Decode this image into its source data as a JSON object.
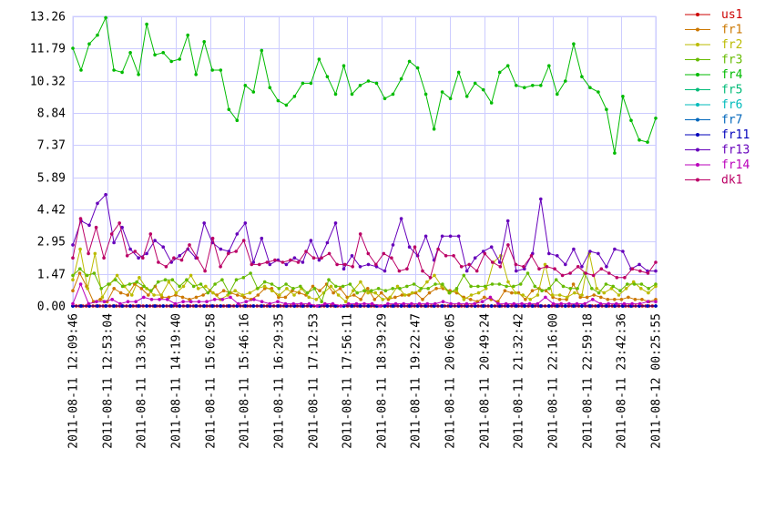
{
  "chart_data": {
    "type": "line",
    "title": "",
    "xlabel": "",
    "ylabel": "",
    "ylim": [
      0,
      13.26
    ],
    "yticks": [
      "0.00",
      "1.47",
      "2.95",
      "4.42",
      "5.89",
      "7.37",
      "8.84",
      "10.32",
      "11.79",
      "13.26"
    ],
    "grid": true,
    "legend_position": "right",
    "x_range": [
      "2011-08-11 12:09:46",
      "2011-08-12 00:25:55"
    ],
    "xticks": [
      "2011-08-11 12:09:46",
      "2011-08-11 12:53:04",
      "2011-08-11 13:36:22",
      "2011-08-11 14:19:40",
      "2011-08-11 15:02:58",
      "2011-08-11 15:46:16",
      "2011-08-11 16:29:35",
      "2011-08-11 17:12:53",
      "2011-08-11 17:56:11",
      "2011-08-11 18:39:29",
      "2011-08-11 19:22:47",
      "2011-08-11 20:06:05",
      "2011-08-11 20:49:24",
      "2011-08-11 21:32:42",
      "2011-08-11 22:16:00",
      "2011-08-11 22:59:18",
      "2011-08-11 23:42:36",
      "2011-08-12 00:25:55"
    ],
    "series": [
      {
        "name": "us1",
        "color": "#cc0000",
        "values": [
          0,
          0,
          0,
          0,
          0,
          0,
          0,
          0,
          0,
          0,
          0,
          0,
          0,
          0,
          0,
          0,
          0,
          0,
          0,
          0,
          0,
          0,
          0,
          0,
          0,
          0,
          0,
          0,
          0,
          0,
          0,
          0,
          0,
          0,
          0,
          0,
          0,
          0,
          0,
          0,
          0,
          0,
          0,
          0,
          0,
          0,
          0,
          0,
          0,
          0,
          0,
          0,
          0,
          0,
          0,
          0,
          0,
          0,
          0,
          0,
          0,
          0,
          0,
          0,
          0,
          0,
          0,
          0,
          0,
          0,
          0,
          0,
          0,
          0,
          0,
          0,
          0,
          0,
          0,
          0,
          0,
          0,
          0,
          0,
          0,
          0,
          0,
          0,
          0,
          0,
          0,
          0,
          0,
          0,
          0,
          0,
          0,
          0,
          0,
          0,
          0,
          0,
          0,
          0,
          0,
          0,
          0,
          0,
          0,
          0,
          0,
          0,
          0,
          0,
          0,
          0,
          0,
          0,
          0,
          0,
          0,
          0,
          0,
          0,
          0,
          0,
          0,
          0,
          0,
          0,
          0,
          0,
          0,
          0,
          0,
          0,
          0,
          0,
          0,
          0,
          0,
          0,
          0,
          0,
          0,
          0,
          0,
          0,
          0,
          0,
          0,
          0,
          0,
          0,
          0,
          0,
          0,
          0,
          0,
          0,
          0,
          0,
          0,
          0,
          0,
          0,
          0,
          0,
          0,
          0,
          0,
          0,
          0,
          0,
          0
        ]
      },
      {
        "name": "fr1",
        "color": "#cc7700",
        "values": [
          0.7,
          1.5,
          0.9,
          0.2,
          0.3,
          0.2,
          0.8,
          0.6,
          0.5,
          1.0,
          0.8,
          0.5,
          0.9,
          0.4,
          0.4,
          0.5,
          0.4,
          0.3,
          0.4,
          0.5,
          0.7,
          0.5,
          0.7,
          0.6,
          0.5,
          0.4,
          0.3,
          0.5,
          0.8,
          0.8,
          0.4,
          0.4,
          0.7,
          0.6,
          0.5,
          0.9,
          0.7,
          1.0,
          0.6,
          0.8,
          0.4,
          0.5,
          0.3,
          0.8,
          0.3,
          0.6,
          0.3,
          0.4,
          0.5,
          0.5,
          0.6,
          0.3,
          0.6,
          0.8,
          0.8,
          0.7,
          0.6,
          0.4,
          0.3,
          0.2,
          0.4,
          0.3,
          0.2,
          0.7,
          0.6,
          0.6,
          0.3,
          0.7,
          0.8,
          0.7,
          0.4,
          0.3,
          0.3,
          1.0,
          0.4,
          0.4,
          0.5,
          0.4,
          0.3,
          0.3,
          0.3,
          0.4,
          0.3,
          0.3,
          0.2,
          0.3
        ]
      },
      {
        "name": "fr2",
        "color": "#bbbb00",
        "values": [
          1.2,
          2.6,
          0.8,
          2.4,
          0.4,
          1.0,
          1.4,
          0.9,
          0.5,
          1.3,
          0.8,
          0.5,
          0.5,
          1.1,
          0.6,
          0.9,
          1.4,
          0.8,
          0.9,
          0.6,
          0.3,
          0.5,
          0.7,
          0.5,
          0.6,
          0.8,
          0.9,
          0.7,
          0.5,
          0.8,
          0.5,
          0.8,
          0.4,
          0.3,
          0.6,
          0.9,
          0.5,
          0.2,
          0.7,
          1.1,
          0.6,
          0.6,
          0.3,
          0.4,
          0.9,
          0.5,
          0.6,
          0.7,
          1.1,
          1.4,
          0.9,
          0.6,
          0.7,
          0.3,
          0.5,
          0.6,
          0.8,
          2.0,
          2.3,
          1.1,
          0.6,
          0.5,
          0.3,
          0.5,
          1.9,
          0.5,
          0.5,
          0.4,
          0.6,
          0.5,
          2.4,
          0.8,
          0.6,
          0.8,
          0.5,
          0.8,
          1.1,
          0.8,
          0.6,
          0.9
        ]
      },
      {
        "name": "fr3",
        "color": "#66bb00",
        "values": [
          1.4,
          1.7,
          1.4,
          1.5,
          0.8,
          1.0,
          1.2,
          0.9,
          1.0,
          1.1,
          0.9,
          0.7,
          1.1,
          1.2,
          1.2,
          0.9,
          1.2,
          0.9,
          1.0,
          0.6,
          1.0,
          1.2,
          0.6,
          1.2,
          1.3,
          1.5,
          0.8,
          1.1,
          1.0,
          0.8,
          1.0,
          0.8,
          0.9,
          0.6,
          0.8,
          0.2,
          1.2,
          0.9,
          0.9,
          1.0,
          0.6,
          0.7,
          0.7,
          0.8,
          0.7,
          0.8,
          0.8,
          0.9,
          1.0,
          0.8,
          0.8,
          1.0,
          1.0,
          0.6,
          0.8,
          1.4,
          0.9,
          0.9,
          0.9,
          1.0,
          1.0,
          0.9,
          0.9,
          1.0,
          1.5,
          0.9,
          0.7,
          0.8,
          1.2,
          0.9,
          0.8,
          0.8,
          1.5,
          0.8,
          0.6,
          1.0,
          0.9,
          0.7,
          1.0,
          1.0,
          1.0,
          0.8,
          1.0
        ]
      },
      {
        "name": "fr4",
        "color": "#00bb00",
        "values": [
          11.8,
          10.8,
          12.0,
          12.4,
          13.2,
          10.8,
          10.7,
          11.6,
          10.6,
          12.9,
          11.5,
          11.6,
          11.2,
          11.3,
          12.4,
          10.6,
          12.1,
          10.8,
          10.8,
          9.0,
          8.5,
          10.1,
          9.8,
          11.7,
          10.0,
          9.4,
          9.2,
          9.6,
          10.2,
          10.2,
          11.3,
          10.5,
          9.7,
          11.0,
          9.7,
          10.1,
          10.3,
          10.2,
          9.5,
          9.7,
          10.4,
          11.2,
          10.9,
          9.7,
          8.1,
          9.8,
          9.5,
          10.7,
          9.6,
          10.2,
          9.9,
          9.3,
          10.7,
          11.0,
          10.1,
          10.0,
          10.1,
          10.1,
          11.0,
          9.7,
          10.3,
          12.0,
          10.5,
          10.0,
          9.8,
          9.0,
          7.0,
          9.6,
          8.5,
          7.6,
          7.5,
          8.6
        ]
      },
      {
        "name": "fr5",
        "color": "#00bb77",
        "values": [
          0,
          0,
          0,
          0,
          0,
          0,
          0,
          0,
          0,
          0,
          0,
          0,
          0,
          0,
          0,
          0,
          0,
          0,
          0,
          0,
          0,
          0,
          0,
          0,
          0,
          0,
          0,
          0,
          0,
          0,
          0,
          0,
          0,
          0,
          0,
          0,
          0,
          0,
          0,
          0,
          0,
          0,
          0,
          0,
          0,
          0,
          0,
          0,
          0,
          0,
          0,
          0,
          0,
          0,
          0,
          0,
          0,
          0,
          0,
          0,
          0,
          0,
          0,
          0,
          0,
          0,
          0,
          0,
          0,
          0,
          0,
          0
        ]
      },
      {
        "name": "fr6",
        "color": "#00bbbb",
        "values": [
          0,
          0,
          0,
          0,
          0,
          0,
          0,
          0,
          0,
          0,
          0,
          0,
          0,
          0,
          0,
          0,
          0,
          0,
          0,
          0,
          0,
          0,
          0,
          0,
          0,
          0,
          0,
          0,
          0,
          0,
          0,
          0,
          0,
          0,
          0,
          0,
          0,
          0,
          0,
          0,
          0,
          0,
          0,
          0,
          0,
          0,
          0,
          0,
          0,
          0,
          0,
          0,
          0,
          0,
          0,
          0,
          0,
          0,
          0,
          0,
          0,
          0,
          0,
          0,
          0,
          0,
          0,
          0,
          0,
          0,
          0,
          0
        ]
      },
      {
        "name": "fr7",
        "color": "#0066bb",
        "values": [
          0,
          0,
          0,
          0,
          0,
          0,
          0,
          0,
          0,
          0,
          0,
          0,
          0,
          0,
          0,
          0,
          0,
          0,
          0,
          0,
          0,
          0,
          0,
          0,
          0,
          0,
          0,
          0,
          0,
          0,
          0,
          0,
          0,
          0,
          0,
          0,
          0,
          0,
          0,
          0,
          0,
          0,
          0,
          0,
          0,
          0,
          0,
          0,
          0,
          0,
          0,
          0,
          0,
          0,
          0,
          0,
          0,
          0,
          0,
          0,
          0,
          0,
          0,
          0,
          0,
          0,
          0,
          0,
          0,
          0,
          0,
          0
        ]
      },
      {
        "name": "fr11",
        "color": "#0000bb",
        "values": [
          0,
          0,
          0,
          0,
          0,
          0,
          0,
          0,
          0,
          0,
          0,
          0,
          0,
          0,
          0,
          0,
          0,
          0,
          0,
          0,
          0,
          0,
          0,
          0,
          0,
          0,
          0,
          0,
          0,
          0,
          0,
          0,
          0,
          0,
          0,
          0,
          0,
          0,
          0,
          0,
          0,
          0,
          0,
          0,
          0,
          0,
          0,
          0,
          0,
          0,
          0,
          0,
          0,
          0,
          0,
          0,
          0,
          0,
          0,
          0,
          0,
          0,
          0,
          0,
          0,
          0,
          0,
          0,
          0,
          0,
          0,
          0
        ]
      },
      {
        "name": "fr13",
        "color": "#6600bb",
        "values": [
          2.8,
          3.9,
          3.7,
          4.7,
          5.1,
          2.9,
          3.6,
          2.6,
          2.2,
          2.4,
          3.0,
          2.7,
          2.0,
          2.3,
          2.6,
          2.2,
          3.8,
          2.9,
          2.6,
          2.5,
          3.3,
          3.8,
          2.0,
          3.1,
          1.9,
          2.1,
          1.9,
          2.2,
          2.0,
          3.0,
          2.1,
          2.9,
          3.8,
          1.7,
          2.3,
          1.8,
          1.9,
          1.8,
          1.6,
          2.8,
          4.0,
          2.7,
          2.3,
          3.2,
          2.1,
          3.2,
          3.2,
          3.2,
          1.6,
          2.2,
          2.5,
          2.7,
          2.0,
          3.9,
          1.6,
          1.7,
          2.4,
          4.9,
          2.4,
          2.3,
          1.9,
          2.6,
          1.8,
          2.5,
          2.4,
          1.8,
          2.6,
          2.5,
          1.7,
          1.9,
          1.6,
          1.6
        ]
      },
      {
        "name": "fr14",
        "color": "#bb00bb",
        "values": [
          0.1,
          1.0,
          0.1,
          0.2,
          0.2,
          0.3,
          0.1,
          0.2,
          0.2,
          0.4,
          0.3,
          0.3,
          0.3,
          0.1,
          0.2,
          0.2,
          0.2,
          0.2,
          0.3,
          0.3,
          0.4,
          0.1,
          0.2,
          0.3,
          0.2,
          0.1,
          0.2,
          0.1,
          0.1,
          0.1,
          0.1,
          0.0,
          0.1,
          0.1,
          0.0,
          0.1,
          0.1,
          0.1,
          0.1,
          0.0,
          0.1,
          0.1,
          0.1,
          0.1,
          0.1,
          0.1,
          0.1,
          0.2,
          0.1,
          0.1,
          0.1,
          0.1,
          0.2,
          0.4,
          0.1,
          0.1,
          0.1,
          0.1,
          0.1,
          0.1,
          0.4,
          0.1,
          0.1,
          0.1,
          0.1,
          0.1,
          0.3,
          0.1,
          0.1,
          0.1,
          0.1,
          0.1,
          0.1,
          0.2,
          0.2
        ]
      },
      {
        "name": "dk1",
        "color": "#bb0066",
        "values": [
          2.2,
          4.0,
          2.4,
          3.6,
          2.2,
          3.3,
          3.8,
          2.3,
          2.5,
          2.2,
          3.3,
          2.0,
          1.8,
          2.2,
          2.1,
          2.8,
          2.2,
          1.6,
          3.1,
          1.8,
          2.4,
          2.5,
          3.0,
          1.9,
          1.9,
          2.0,
          2.1,
          2.0,
          2.1,
          2.0,
          2.5,
          2.2,
          2.2,
          2.4,
          1.9,
          1.9,
          1.8,
          3.3,
          2.4,
          1.9,
          2.4,
          2.2,
          1.6,
          1.7,
          2.7,
          1.6,
          1.3,
          2.6,
          2.3,
          2.3,
          1.8,
          1.9,
          1.6,
          2.4,
          2.0,
          1.8,
          2.8,
          1.9,
          1.8,
          2.3,
          1.7,
          1.8,
          1.7,
          1.4,
          1.5,
          1.8,
          1.5,
          1.4,
          1.7,
          1.5,
          1.3,
          1.3,
          1.7,
          1.6,
          1.5,
          2.0
        ]
      }
    ]
  }
}
